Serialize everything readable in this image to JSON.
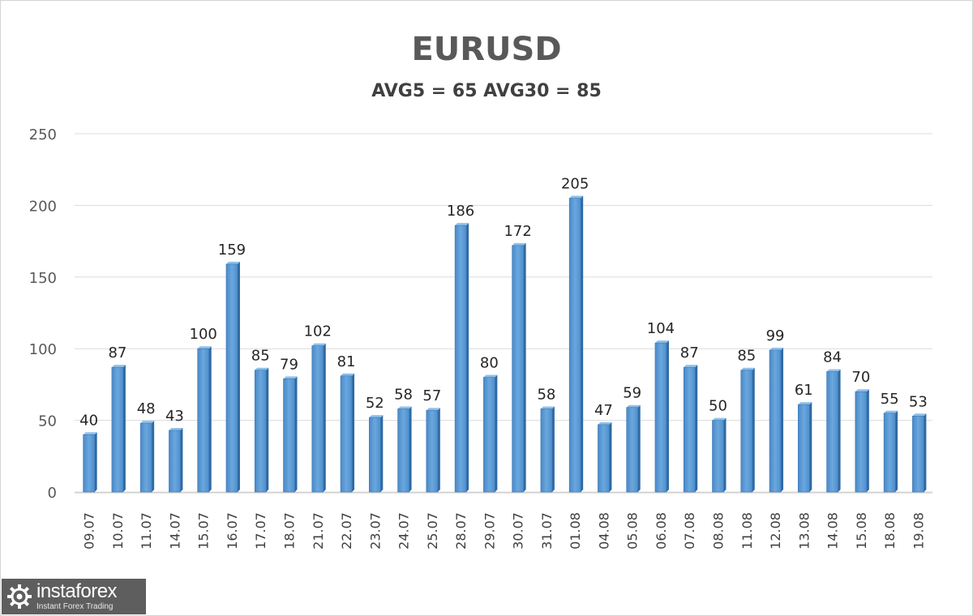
{
  "chart_data": {
    "type": "bar",
    "title": "EURUSD",
    "subtitle": "AVG5 = 65 AVG30 = 85",
    "xlabel": "",
    "ylabel": "",
    "ylim": [
      0,
      250
    ],
    "yticks": [
      "0",
      "50",
      "100",
      "150",
      "200",
      "250"
    ],
    "grid": true,
    "bar_color": "#5b9bd5",
    "categories": [
      "09.07",
      "10.07",
      "11.07",
      "14.07",
      "15.07",
      "16.07",
      "17.07",
      "18.07",
      "21.07",
      "22.07",
      "23.07",
      "24.07",
      "25.07",
      "28.07",
      "29.07",
      "30.07",
      "31.07",
      "01.08",
      "04.08",
      "05.08",
      "06.08",
      "07.08",
      "08.08",
      "11.08",
      "12.08",
      "13.08",
      "14.08",
      "15.08",
      "18.08",
      "19.08"
    ],
    "values": [
      40,
      87,
      48,
      43,
      100,
      159,
      85,
      79,
      102,
      81,
      52,
      58,
      57,
      186,
      80,
      172,
      58,
      205,
      47,
      59,
      104,
      87,
      50,
      85,
      99,
      61,
      84,
      70,
      55,
      53
    ]
  },
  "logo": {
    "brand": "instaforex",
    "tagline": "Instant Forex Trading"
  }
}
